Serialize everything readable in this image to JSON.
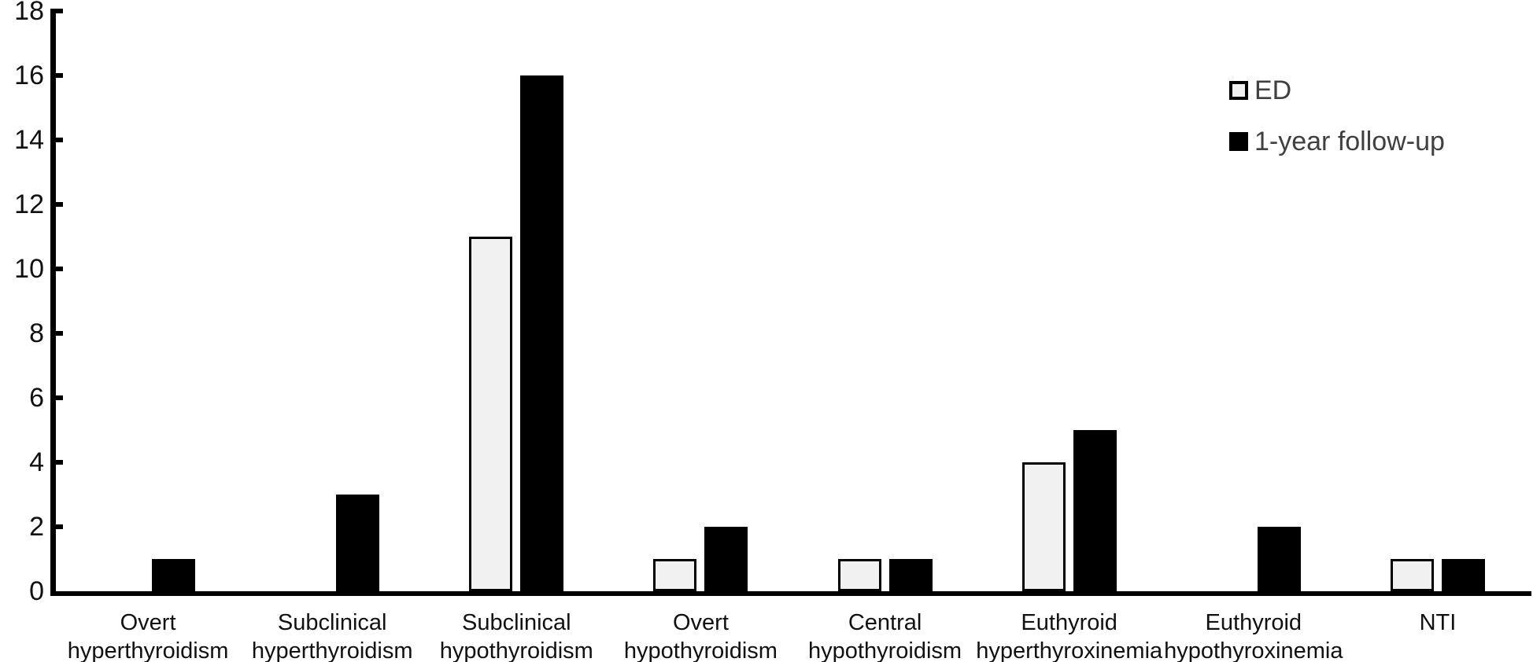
{
  "figure": {
    "background": "#ffffff"
  },
  "chart_data": {
    "type": "bar",
    "title": "",
    "xlabel": "",
    "ylabel": "",
    "grid": false,
    "legend_position": "top-right",
    "categories": [
      "Overt\nhyperthyroidism",
      "Subclinical\nhyperthyroidism",
      "Subclinical\nhypothyroidism",
      "Overt\nhypothyroidism",
      "Central\nhypothyroidism",
      "Euthyroid\nhyperthyroxinemia",
      "Euthyroid\nhypothyroxinemia",
      "NTI"
    ],
    "series": [
      {
        "name": "ED",
        "values": [
          0,
          0,
          11,
          1,
          1,
          4,
          0,
          1
        ],
        "fill": "#f1f1f1",
        "border": "#000000"
      },
      {
        "name": "1-year follow-up",
        "values": [
          1,
          3,
          16,
          2,
          1,
          5,
          2,
          1
        ],
        "fill": "#000000",
        "border": "#000000"
      }
    ],
    "ylim": [
      0,
      18
    ],
    "yticks": [
      0,
      2,
      4,
      6,
      8,
      10,
      12,
      14,
      16,
      18
    ],
    "colors": {
      "axis": "#000000",
      "tick_label": "#111111",
      "category_label": "#111111",
      "legend_text": "#404040"
    }
  }
}
